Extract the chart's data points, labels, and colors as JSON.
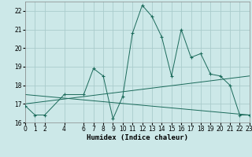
{
  "xlabel": "Humidex (Indice chaleur)",
  "bg_color": "#cce8e8",
  "grid_color": "#aacccc",
  "line_color": "#1a6a5a",
  "series1_x": [
    0,
    1,
    2,
    4,
    6,
    7,
    8,
    9,
    10,
    11,
    12,
    13,
    14,
    15,
    16,
    17,
    18,
    19,
    20,
    21,
    22,
    23
  ],
  "series1_y": [
    16.9,
    16.4,
    16.4,
    17.5,
    17.5,
    18.9,
    18.5,
    16.2,
    17.4,
    20.8,
    22.3,
    21.7,
    20.6,
    18.5,
    21.0,
    19.5,
    19.7,
    18.6,
    18.5,
    18.0,
    16.4,
    16.4
  ],
  "series2_x": [
    0,
    23
  ],
  "series2_y": [
    17.0,
    18.5
  ],
  "series3_x": [
    0,
    23
  ],
  "series3_y": [
    17.5,
    16.4
  ],
  "xlim": [
    0,
    23
  ],
  "ylim": [
    16.0,
    22.5
  ],
  "yticks": [
    16,
    17,
    18,
    19,
    20,
    21,
    22
  ],
  "xticks": [
    0,
    1,
    2,
    4,
    6,
    7,
    8,
    9,
    10,
    11,
    12,
    13,
    14,
    15,
    16,
    17,
    18,
    19,
    20,
    21,
    22,
    23
  ],
  "xlabel_fontsize": 6.5,
  "tick_fontsize": 5.5
}
